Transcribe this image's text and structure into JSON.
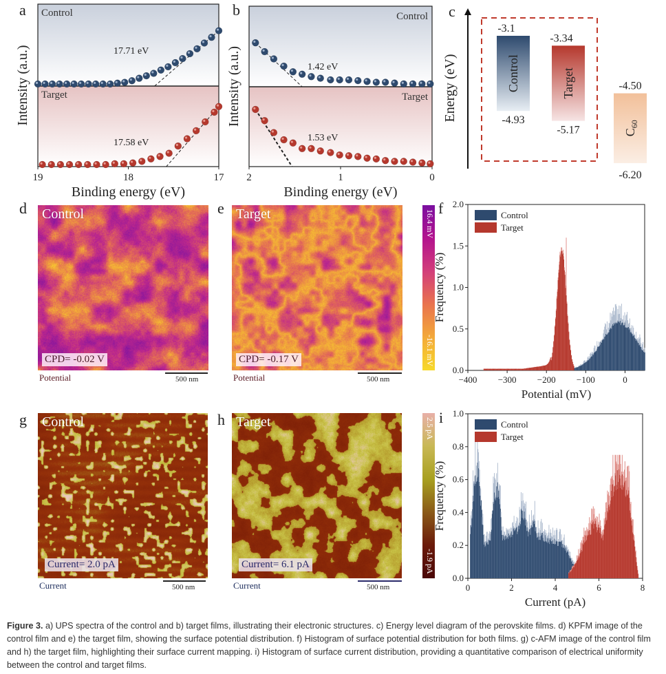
{
  "figure": {
    "caption_label": "Figure 3.",
    "caption_text": " a) UPS spectra of the control and b) target films, illustrating their electronic structures. c) Energy level diagram of the perovskite films. d) KPFM image of the control film and e) the target film, showing the surface potential distribution. f) Histogram of surface potential distribution for both films. g) c-AFM image of the control film and h) the target film, highlighting their surface current mapping. i) Histogram of surface current distribution, providing a quantitative comparison of electrical uniformity between the control and target films."
  },
  "colors": {
    "control": "#2e4a6e",
    "target": "#b5382d",
    "c60": "#f2c5a0",
    "dashed_box": "#c0392b"
  },
  "panels": {
    "a": {
      "label": "a"
    },
    "b": {
      "label": "b"
    },
    "c": {
      "label": "c"
    },
    "d": {
      "label": "d",
      "title": "Control",
      "badge": "CPD= -0.02 V",
      "channel": "Potential",
      "scale": "500 nm"
    },
    "e": {
      "label": "e",
      "title": "Target",
      "badge": "CPD= -0.17 V",
      "channel": "Potential",
      "scale": "500 nm"
    },
    "f": {
      "label": "f"
    },
    "g": {
      "label": "g",
      "title": "Control",
      "badge": "Current= 2.0 pA",
      "channel": "Current",
      "scale": "500 nm"
    },
    "h": {
      "label": "h",
      "title": "Target",
      "badge": "Current= 6.1 pA",
      "channel": "Current",
      "scale": "500 nm"
    },
    "i": {
      "label": "i"
    }
  },
  "colorbars": {
    "kpfm": {
      "max": "16.4 mV",
      "min": "-16.1 mV"
    },
    "cafm": {
      "max": "2.5 pA",
      "min": "-1.9 pA"
    }
  },
  "chart_data": [
    {
      "id": "a",
      "type": "scatter",
      "title": "",
      "xlabel": "Binding energy (eV)",
      "ylabel": "Intensity (a.u.)",
      "xlim": [
        19,
        17
      ],
      "x_ticks": [
        "19",
        "18",
        "17"
      ],
      "grid": false,
      "subpanels": [
        {
          "name": "Control",
          "annotation": "17.71 eV",
          "cutoff": 17.71,
          "x": [
            19.0,
            18.92,
            18.84,
            18.76,
            18.68,
            18.6,
            18.52,
            18.44,
            18.36,
            18.28,
            18.2,
            18.12,
            18.04,
            17.96,
            17.88,
            17.8,
            17.72,
            17.64,
            17.56,
            17.48,
            17.4,
            17.32,
            17.24,
            17.16,
            17.08,
            17.0
          ],
          "y": [
            0,
            0,
            0,
            0,
            0,
            0,
            0,
            0,
            0,
            0,
            0,
            0.01,
            0.02,
            0.04,
            0.07,
            0.1,
            0.13,
            0.17,
            0.21,
            0.26,
            0.31,
            0.37,
            0.43,
            0.5,
            0.57,
            0.65
          ]
        },
        {
          "name": "Target",
          "annotation": "17.58 eV",
          "cutoff": 17.58,
          "x": [
            18.95,
            18.85,
            18.75,
            18.65,
            18.55,
            18.45,
            18.35,
            18.25,
            18.15,
            18.05,
            17.95,
            17.85,
            17.75,
            17.65,
            17.55,
            17.45,
            17.35,
            17.25,
            17.15,
            17.05,
            17.0
          ],
          "y": [
            0,
            0,
            0,
            0,
            0,
            0,
            0,
            0,
            0.01,
            0.01,
            0.02,
            0.04,
            0.07,
            0.1,
            0.14,
            0.23,
            0.32,
            0.42,
            0.53,
            0.65,
            0.72
          ]
        }
      ]
    },
    {
      "id": "b",
      "type": "scatter",
      "xlabel": "Binding energy (eV)",
      "ylabel": "Intensity (a.u.)",
      "xlim": [
        2,
        0
      ],
      "x_ticks": [
        "2",
        "1",
        "0"
      ],
      "grid": false,
      "subpanels": [
        {
          "name": "Control",
          "annotation": "1.42 eV",
          "cutoff": 1.42,
          "x": [
            1.93,
            1.83,
            1.73,
            1.62,
            1.52,
            1.42,
            1.32,
            1.22,
            1.11,
            1.01,
            0.91,
            0.81,
            0.71,
            0.61,
            0.51,
            0.41,
            0.31,
            0.21,
            0.11,
            0.02
          ],
          "y": [
            0.52,
            0.41,
            0.32,
            0.23,
            0.16,
            0.13,
            0.1,
            0.08,
            0.06,
            0.06,
            0.06,
            0.05,
            0.04,
            0.03,
            0.03,
            0.02,
            0.01,
            0.01,
            0.01,
            0.01
          ]
        },
        {
          "name": "Target",
          "annotation": "1.53 eV",
          "cutoff": 1.53,
          "x": [
            1.93,
            1.83,
            1.73,
            1.62,
            1.52,
            1.42,
            1.32,
            1.22,
            1.11,
            1.01,
            0.91,
            0.81,
            0.71,
            0.61,
            0.51,
            0.41,
            0.31,
            0.21,
            0.11,
            0.02
          ],
          "y": [
            0.69,
            0.55,
            0.4,
            0.31,
            0.27,
            0.2,
            0.2,
            0.17,
            0.15,
            0.12,
            0.11,
            0.1,
            0.08,
            0.07,
            0.05,
            0.04,
            0.04,
            0.03,
            0.02,
            0.01
          ]
        }
      ]
    },
    {
      "id": "c",
      "type": "bar",
      "title": "",
      "ylabel": "Energy (eV)",
      "categories": [
        "Control",
        "Target",
        "C60"
      ],
      "category_display": [
        "Control",
        "Target",
        "C"
      ],
      "c60_subscript": "60",
      "top": [
        -3.1,
        -3.34,
        -4.5
      ],
      "bottom": [
        -4.93,
        -5.17,
        -6.2
      ],
      "top_labels": [
        "-3.1",
        "-3.34",
        "-4.50"
      ],
      "bottom_labels": [
        "-4.93",
        "-5.17",
        "-6.20"
      ],
      "ylim": [
        -6.5,
        -2.5
      ]
    },
    {
      "id": "f",
      "type": "bar",
      "title": "",
      "xlabel": "Potential (mV)",
      "ylabel": "Frequency (%)",
      "xlim": [
        -400,
        50
      ],
      "ylim": [
        0,
        2.0
      ],
      "x_ticks": [
        "−400",
        "−300",
        "−200",
        "−100",
        "0"
      ],
      "x_tick_values": [
        -400,
        -300,
        -200,
        -100,
        0
      ],
      "y_ticks": [
        "0.0",
        "0.5",
        "1.0",
        "1.5",
        "2.0"
      ],
      "legend": "top-left",
      "series": [
        {
          "name": "Control",
          "peak_center": -15,
          "peak_height": 0.6,
          "peak_width": 45,
          "spike_max": 0.82,
          "range": [
            -200,
            50
          ]
        },
        {
          "name": "Target",
          "peak_center": -162,
          "peak_height": 1.5,
          "peak_width": 12,
          "spike_max": 1.6,
          "range": [
            -360,
            -130
          ],
          "tail_level": 0.02
        }
      ]
    },
    {
      "id": "i",
      "type": "bar",
      "title": "",
      "xlabel": "Current (pA)",
      "ylabel": "Frequency (%)",
      "xlim": [
        0,
        8
      ],
      "ylim": [
        0,
        1.0
      ],
      "x_ticks": [
        "0",
        "2",
        "4",
        "6",
        "8"
      ],
      "x_tick_values": [
        0,
        2,
        4,
        6,
        8
      ],
      "y_ticks": [
        "0.0",
        "0.2",
        "0.4",
        "0.6",
        "0.8",
        "1.0"
      ],
      "legend": "top-left",
      "series": [
        {
          "name": "Control",
          "peaks": [
            [
              0.4,
              0.72
            ],
            [
              1.3,
              0.6
            ],
            [
              2.5,
              0.45
            ],
            [
              3.0,
              0.36
            ],
            [
              4.0,
              0.24
            ]
          ],
          "range": [
            0.1,
            5.2
          ],
          "spike_max": 0.83
        },
        {
          "name": "Target",
          "peaks": [
            [
              5.8,
              0.35
            ],
            [
              6.9,
              0.68
            ]
          ],
          "range": [
            4.6,
            7.9
          ],
          "spike_max": 0.75
        }
      ]
    }
  ]
}
